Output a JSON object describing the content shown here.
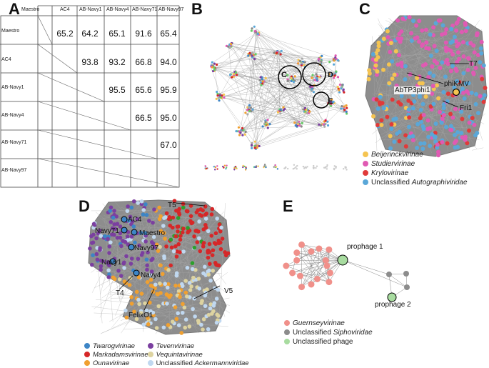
{
  "panels": {
    "a": "A",
    "b": "B",
    "c": "C",
    "d": "D",
    "e": "E"
  },
  "matrix": {
    "columns": [
      "Maestro",
      "AC4",
      "AB-Navy1",
      "AB-Navy4",
      "AB-Navy71",
      "AB-Navy97"
    ],
    "rows": [
      "Maestro",
      "AC4",
      "AB-Navy1",
      "AB-Navy4",
      "AB-Navy71",
      "AB-Navy97"
    ],
    "values": [
      [
        "",
        "65.2",
        "64.2",
        "65.1",
        "91.6",
        "65.4"
      ],
      [
        "",
        "",
        "93.8",
        "93.2",
        "66.8",
        "94.0"
      ],
      [
        "",
        "",
        "",
        "95.5",
        "65.6",
        "95.9"
      ],
      [
        "",
        "",
        "",
        "",
        "66.5",
        "95.0"
      ],
      [
        "",
        "",
        "",
        "",
        "",
        "67.0"
      ],
      [
        "",
        "",
        "",
        "",
        "",
        ""
      ]
    ]
  },
  "network_b": {
    "circle_labels": [
      "C",
      "D",
      "E"
    ]
  },
  "panel_c": {
    "labels": {
      "t7": "T7",
      "phikmv": "phiKMV",
      "abtp": "AbTP3phi1",
      "fri1": "Fri1"
    },
    "legend": [
      {
        "name": "Beijerinckvirinae",
        "italic": "Beijerinckvirinae",
        "color": "#f5c451"
      },
      {
        "name": "Studiervirinae",
        "italic": "Studiervirinae",
        "color": "#e05ab3"
      },
      {
        "name": "Krylovirinae",
        "italic": "Krylovirinae",
        "color": "#e03a3a"
      },
      {
        "prefix": "Unclassified ",
        "italic": "Autographiviridae",
        "color": "#5aa7d8"
      }
    ]
  },
  "panel_d": {
    "labels": {
      "t5": "T5",
      "ac4": "AC4",
      "navy71": "Navy71",
      "maestro": "Maestro",
      "navy97": "Navy97",
      "navy1": "Navy1",
      "navy4": "Navy4",
      "t4": "T4",
      "felixo1": "FelixO1",
      "v5": "V5"
    },
    "legend": [
      {
        "italic": "Twarogvirinae",
        "color": "#3d85c6"
      },
      {
        "italic": "Tevenvirinae",
        "color": "#7b3fa0"
      },
      {
        "italic": "Markadamsvirinae",
        "color": "#d62728"
      },
      {
        "italic": "Vequintavirinae",
        "color": "#ddd3a0"
      },
      {
        "italic": "Ounavirinae",
        "color": "#f0a030"
      },
      {
        "prefix": "Unclassified ",
        "italic": "Ackermannviridae",
        "color": "#c0d8f0"
      }
    ]
  },
  "panel_e": {
    "labels": {
      "prophage1": "prophage 1",
      "prophage2": "prophage 2"
    },
    "legend": [
      {
        "italic": "Guernseyvirinae",
        "color": "#f0908a"
      },
      {
        "prefix": "Unclassified ",
        "italic": "Siphoviridae",
        "color": "#8c8c8c"
      },
      {
        "prefix": "Unclassified phage",
        "italic": "",
        "color": "#a8dca0"
      }
    ]
  }
}
